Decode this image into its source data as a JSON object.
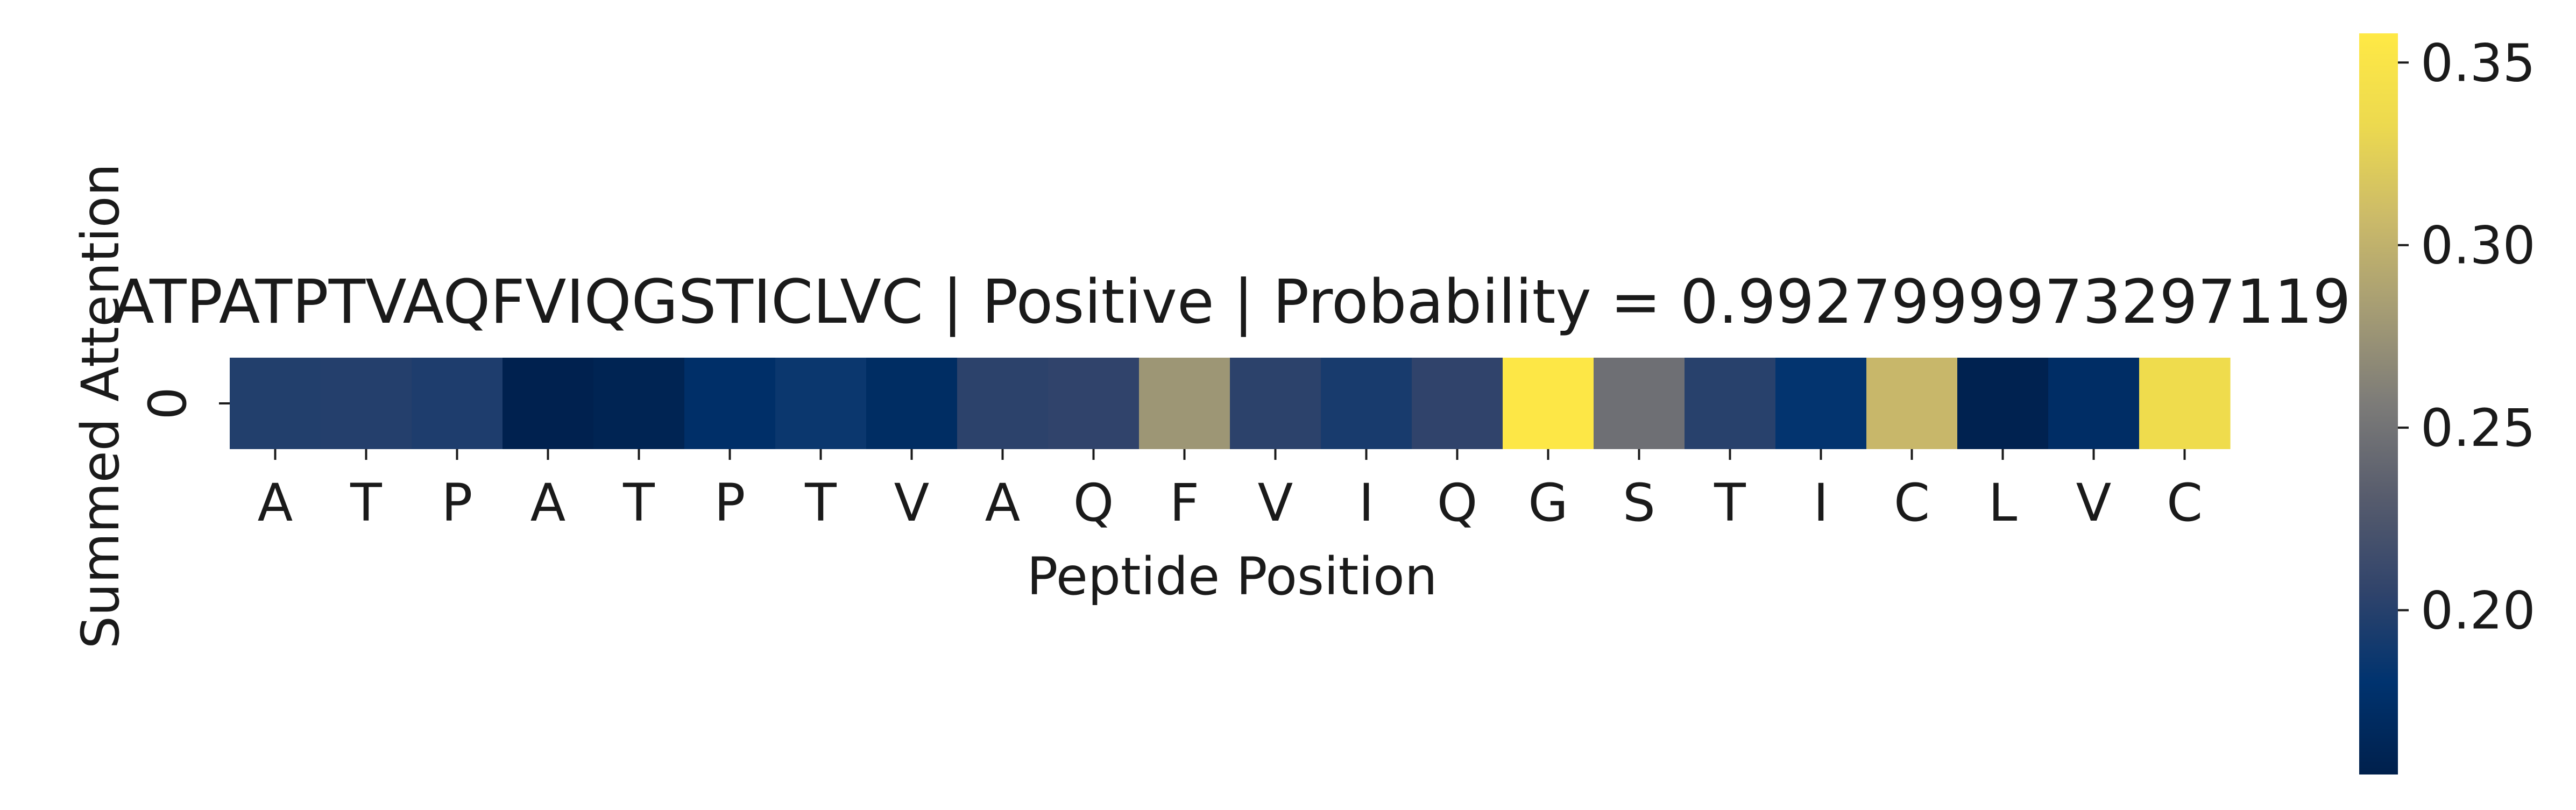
{
  "chart_data": {
    "type": "heatmap",
    "title": "ATPATPTVAQFVIQGSTICLVC | Positive | Probability = 0.9927999973297119",
    "xlabel": "Peptide Position",
    "ylabel": "Summed Attention",
    "x_categories": [
      "A",
      "T",
      "P",
      "A",
      "T",
      "P",
      "T",
      "V",
      "A",
      "Q",
      "F",
      "V",
      "I",
      "Q",
      "G",
      "S",
      "T",
      "I",
      "C",
      "L",
      "V",
      "C"
    ],
    "y_categories": [
      "0"
    ],
    "values": [
      [
        0.198,
        0.199,
        0.196,
        0.157,
        0.16,
        0.175,
        0.186,
        0.172,
        0.203,
        0.205,
        0.277,
        0.203,
        0.193,
        0.205,
        0.355,
        0.247,
        0.201,
        0.182,
        0.305,
        0.158,
        0.173,
        0.337
      ]
    ],
    "colormap": "cividis",
    "colorbar": {
      "min": 0.155,
      "max": 0.358,
      "ticks": [
        0.2,
        0.25,
        0.3,
        0.35
      ],
      "tick_labels": [
        "0.20",
        "0.25",
        "0.30",
        "0.35"
      ]
    }
  }
}
